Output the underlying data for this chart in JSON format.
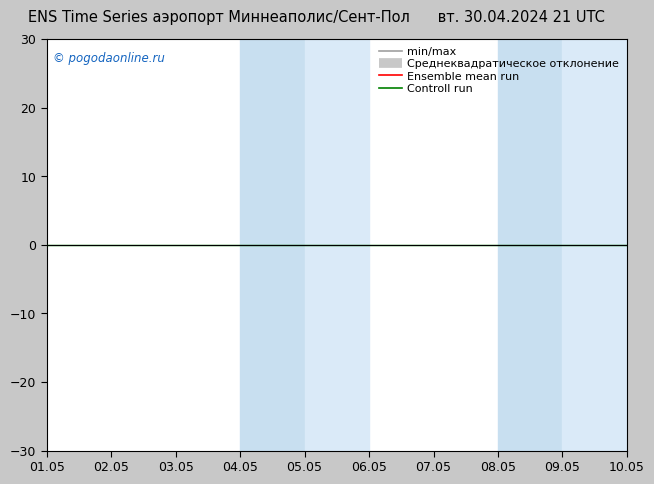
{
  "title": "ENS Time Series аэропорт Миннеаполис/Сент-Пол",
  "date_label": "вт. 30.04.2024 21 UTC",
  "watermark": "© pogodaonline.ru",
  "ylim": [
    -30,
    30
  ],
  "yticks": [
    -30,
    -20,
    -10,
    0,
    10,
    20,
    30
  ],
  "xlim": [
    0,
    9
  ],
  "xtick_labels": [
    "01.05",
    "02.05",
    "03.05",
    "04.05",
    "05.05",
    "06.05",
    "07.05",
    "08.05",
    "09.05",
    "10.05"
  ],
  "xtick_positions": [
    0,
    1,
    2,
    3,
    4,
    5,
    6,
    7,
    8,
    9
  ],
  "shaded_bands": [
    {
      "x_start": 3.0,
      "x_end": 4.0
    },
    {
      "x_start": 4.0,
      "x_end": 5.0
    },
    {
      "x_start": 7.0,
      "x_end": 8.0
    },
    {
      "x_start": 8.0,
      "x_end": 9.0
    }
  ],
  "band_colors": [
    "#c8dff0",
    "#daeaf8",
    "#c8dff0",
    "#daeaf8"
  ],
  "figure_bg_color": "#c8c8c8",
  "plot_bg_color": "#ffffff",
  "zero_line_color": "#000000",
  "green_line_color": "#008000",
  "legend_entries": [
    {
      "label": "min/max",
      "color": "#a0a0a0",
      "lw": 1.2
    },
    {
      "label": "Среднеквадратическое отклонение",
      "color": "#c8c8c8",
      "lw": 7
    },
    {
      "label": "Ensemble mean run",
      "color": "#ff0000",
      "lw": 1.2
    },
    {
      "label": "Controll run",
      "color": "#008000",
      "lw": 1.2
    }
  ],
  "title_fontsize": 10.5,
  "tick_fontsize": 9,
  "legend_fontsize": 8,
  "watermark_color": "#1565c0",
  "watermark_fontsize": 8.5
}
